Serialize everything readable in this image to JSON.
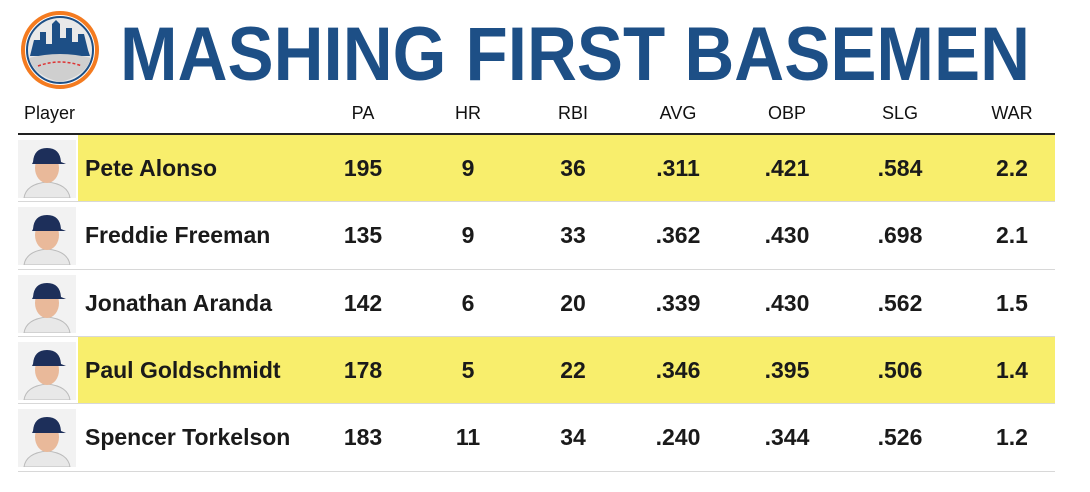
{
  "header": {
    "title": "MASHING FIRST BASEMEN"
  },
  "table": {
    "columns": [
      "Player",
      "PA",
      "HR",
      "RBI",
      "AVG",
      "OBP",
      "SLG",
      "WAR"
    ],
    "rows": [
      [
        "Pete Alonso",
        "195",
        "9",
        "36",
        ".311",
        ".421",
        ".584",
        "2.2"
      ],
      [
        "Freddie Freeman",
        "135",
        "9",
        "33",
        ".362",
        ".430",
        ".698",
        "2.1"
      ],
      [
        "Jonathan Aranda",
        "142",
        "6",
        "20",
        ".339",
        ".430",
        ".562",
        "1.5"
      ],
      [
        "Paul Goldschmidt",
        "178",
        "5",
        "22",
        ".346",
        ".395",
        ".506",
        "1.4"
      ],
      [
        "Spencer Torkelson",
        "183",
        "11",
        "34",
        ".240",
        ".344",
        ".526",
        "1.2"
      ]
    ],
    "highlighted_rows": [
      0,
      3
    ],
    "highlight_color": "#f8ee6c"
  }
}
